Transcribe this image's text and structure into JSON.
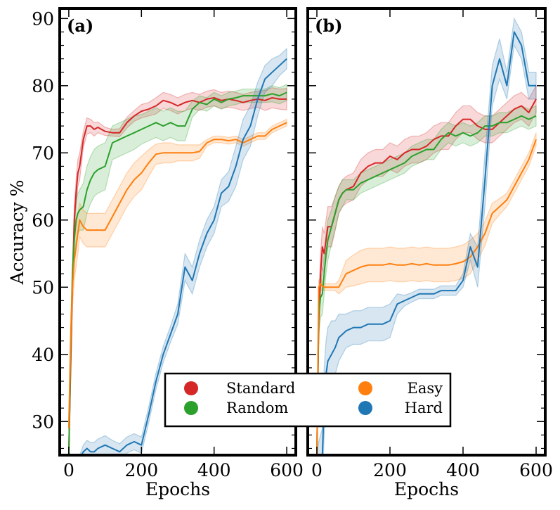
{
  "chart_data": [
    {
      "type": "line",
      "panel_label": "(a)",
      "xlabel": "Epochs",
      "ylabel": "Accuracy %",
      "xlim": [
        -25,
        625
      ],
      "ylim": [
        25,
        91.5
      ],
      "xticks": [
        0,
        200,
        400,
        600
      ],
      "yticks": [
        30,
        40,
        50,
        60,
        70,
        80,
        90
      ],
      "grid": false,
      "x": [
        0,
        5,
        10,
        15,
        20,
        25,
        30,
        40,
        50,
        60,
        70,
        80,
        100,
        120,
        140,
        160,
        180,
        200,
        220,
        240,
        260,
        280,
        300,
        320,
        340,
        360,
        380,
        400,
        420,
        440,
        460,
        480,
        500,
        520,
        540,
        560,
        580,
        600
      ],
      "series": [
        {
          "name": "Standard",
          "color": "#d62728",
          "values": [
            25,
            38,
            50,
            60,
            64,
            67,
            68,
            72,
            74,
            74,
            73.5,
            73.8,
            73.2,
            73.0,
            73.0,
            74.5,
            75.5,
            76.2,
            76.5,
            77.0,
            77.8,
            77.5,
            77.0,
            77.5,
            77.8,
            77.5,
            78.0,
            78.2,
            77.8,
            78.0,
            77.8,
            77.5,
            77.8,
            78.0,
            77.8,
            78.2,
            78.0,
            78.0
          ],
          "spread": [
            0.5,
            2,
            2,
            2,
            2,
            2,
            2,
            1.2,
            1.2,
            1,
            1,
            0.8,
            0.6,
            0.5,
            0.6,
            0.8,
            0.8,
            1,
            1,
            1.2,
            1.2,
            1.2,
            1.2,
            1.2,
            1.2,
            1.2,
            1.2,
            1.2,
            1.2,
            1.2,
            1.2,
            1.2,
            1.2,
            1.2,
            1.5,
            1.5,
            1.5,
            1.6
          ]
        },
        {
          "name": "Random",
          "color": "#2ca02c",
          "values": [
            25,
            40,
            52,
            57,
            60,
            61,
            61.5,
            62,
            64.5,
            66,
            67,
            67.5,
            68,
            71.5,
            72,
            72.5,
            73,
            73.5,
            74,
            74.5,
            74,
            74.5,
            74,
            74,
            76.5,
            77.5,
            77.2,
            78.0,
            77.5,
            78.0,
            78.2,
            78.5,
            78.5,
            78.5,
            78.5,
            78.8,
            78.5,
            79.0
          ],
          "spread": [
            0.5,
            2,
            2,
            2.5,
            3,
            3,
            3,
            3.5,
            3.5,
            3.5,
            3.5,
            3.5,
            3.5,
            2.5,
            2.5,
            2.5,
            2.5,
            2.2,
            2.2,
            2.2,
            2.2,
            2.2,
            2.2,
            2.2,
            1.2,
            1.0,
            1.0,
            1.0,
            1.0,
            1.0,
            1.0,
            1.0,
            1.0,
            1.0,
            1.0,
            1.2,
            1.2,
            1.2
          ]
        },
        {
          "name": "Easy",
          "color": "#ff7f0e",
          "values": [
            29,
            42,
            50,
            54,
            56,
            58,
            60,
            59,
            58.5,
            58.5,
            58.5,
            58.5,
            58.5,
            60.5,
            62.5,
            64.5,
            66,
            67,
            68.5,
            69.8,
            70,
            70,
            70,
            70,
            70,
            70.2,
            71.5,
            72,
            72,
            71.8,
            72.0,
            71.5,
            72,
            72.5,
            72.5,
            73.5,
            74,
            74.5
          ],
          "spread": [
            0.5,
            3,
            3,
            3,
            3,
            3,
            2.5,
            2.5,
            2.5,
            2.5,
            2.5,
            2.5,
            2.5,
            2.5,
            2.5,
            2.5,
            2.5,
            2.5,
            2,
            1.5,
            1.5,
            1.5,
            1.2,
            1.2,
            1.2,
            1.0,
            0.5,
            0.5,
            0.5,
            0.5,
            0.5,
            0.5,
            0.5,
            0.5,
            0.5,
            0.5,
            0.5,
            0.5
          ]
        },
        {
          "name": "Hard",
          "color": "#1f77b4",
          "values": [
            25,
            24.5,
            24.5,
            24.5,
            24.5,
            24.5,
            24.5,
            25.5,
            26,
            25.5,
            25.5,
            26,
            26.5,
            26,
            25.5,
            26.5,
            27,
            26.5,
            31,
            36,
            40,
            43,
            46,
            53,
            51,
            55,
            58,
            60,
            64,
            65,
            68,
            72,
            74,
            78,
            81,
            82,
            83,
            84
          ],
          "spread": [
            0.5,
            0.5,
            0.5,
            0.5,
            0.5,
            0.5,
            0.5,
            1,
            1.2,
            1.4,
            1.4,
            1.4,
            1.4,
            1.2,
            1.2,
            1.2,
            1.2,
            1.2,
            1.2,
            1.2,
            1.2,
            1.2,
            1.5,
            2,
            2,
            2,
            2,
            2,
            2,
            2.2,
            3,
            3,
            3,
            2.5,
            2,
            2,
            1.5,
            1.5
          ]
        }
      ]
    },
    {
      "type": "line",
      "panel_label": "(b)",
      "xlabel": "Epochs",
      "ylabel": "",
      "xlim": [
        -25,
        625
      ],
      "ylim": [
        25,
        91.5
      ],
      "xticks": [
        0,
        200,
        400,
        600
      ],
      "yticks": [
        30,
        40,
        50,
        60,
        70,
        80,
        90
      ],
      "grid": false,
      "x": [
        0,
        5,
        10,
        15,
        20,
        25,
        30,
        40,
        50,
        60,
        70,
        80,
        100,
        120,
        140,
        160,
        180,
        200,
        220,
        240,
        260,
        280,
        300,
        320,
        340,
        360,
        380,
        400,
        420,
        440,
        460,
        480,
        500,
        520,
        540,
        560,
        580,
        600
      ],
      "series": [
        {
          "name": "Standard",
          "color": "#d62728",
          "values": [
            25,
            45,
            52,
            56,
            55,
            57,
            59,
            59,
            61,
            63,
            64,
            64.5,
            65,
            67,
            68,
            68.5,
            68.5,
            69.5,
            69,
            70,
            70.5,
            70.5,
            71,
            72,
            72.5,
            72.5,
            74,
            75,
            75,
            74,
            73.5,
            73.5,
            74.5,
            75.5,
            76.5,
            77,
            76,
            78
          ],
          "spread": [
            0.5,
            3,
            3,
            3,
            3,
            3,
            3,
            3,
            2.5,
            2,
            2,
            2,
            2,
            2,
            2,
            2,
            2,
            2,
            2,
            2,
            2,
            2,
            2,
            2,
            2,
            2,
            2,
            2,
            2,
            2,
            2,
            2,
            2,
            2,
            2,
            2,
            2,
            2
          ]
        },
        {
          "name": "Random",
          "color": "#2ca02c",
          "values": [
            25,
            46,
            48.5,
            49,
            52,
            55,
            57,
            59,
            61,
            63,
            64,
            64.5,
            64.5,
            65.5,
            66,
            66.5,
            67,
            67.5,
            68,
            68.5,
            69.5,
            70,
            70.5,
            70.5,
            72,
            73,
            72.5,
            73,
            72.5,
            73,
            74,
            74,
            74.5,
            74.5,
            75,
            75.5,
            75,
            75.5
          ],
          "spread": [
            0.5,
            3,
            3,
            3,
            3,
            3,
            3,
            2.5,
            2.5,
            2,
            2,
            1.5,
            1.5,
            1.5,
            1.5,
            1.5,
            1.5,
            1.5,
            1.5,
            1.5,
            1.5,
            1.5,
            1.5,
            1.5,
            1.5,
            1.5,
            1.5,
            1.5,
            1.5,
            1.5,
            1.5,
            1.5,
            1.5,
            1.5,
            1.5,
            1.5,
            1.5,
            1.5
          ]
        },
        {
          "name": "Easy",
          "color": "#ff7f0e",
          "values": [
            25,
            50,
            50.5,
            50.2,
            50,
            50,
            50,
            50,
            50,
            50,
            51,
            52,
            52.5,
            53,
            53.3,
            53.3,
            53.3,
            53.5,
            53.3,
            53.3,
            53.5,
            53.3,
            53.5,
            53.3,
            53.3,
            53.3,
            53.5,
            53.8,
            54.5,
            56,
            58,
            61,
            62,
            63,
            65,
            67,
            69,
            72
          ],
          "spread": [
            0.5,
            1,
            1,
            0.5,
            0.5,
            0.5,
            0.5,
            0.5,
            0.5,
            1,
            1.5,
            2,
            2.3,
            2.5,
            2.5,
            2.5,
            2.5,
            2.5,
            2.5,
            2.5,
            2.5,
            2.5,
            2.5,
            2.5,
            2.5,
            2.5,
            2.5,
            2.5,
            2.5,
            2,
            1.8,
            1.5,
            1.2,
            1.0,
            1.0,
            1.0,
            1.0,
            1.0
          ]
        },
        {
          "name": "Hard",
          "color": "#1f77b4",
          "values": [
            25,
            25,
            25,
            25,
            33,
            37,
            39,
            40,
            41,
            42.5,
            43,
            43.5,
            44,
            44,
            44.5,
            44.5,
            44.5,
            45,
            47.5,
            48,
            48.5,
            49,
            49,
            49,
            49.5,
            49.5,
            49.5,
            51,
            56,
            53,
            66,
            80,
            84,
            80,
            88,
            86,
            80,
            80
          ],
          "spread": [
            0.5,
            2,
            3,
            4,
            5,
            5,
            5,
            5,
            4,
            3.5,
            3,
            2.5,
            2.5,
            2.5,
            2.5,
            2.5,
            2.5,
            2.5,
            1.5,
            0.8,
            0.7,
            0.7,
            0.7,
            0.7,
            0.7,
            0.7,
            0.7,
            1,
            2,
            3,
            4,
            3,
            3,
            2,
            2,
            2,
            2,
            2
          ]
        }
      ]
    }
  ],
  "legend": {
    "placement": "lower-center",
    "entries": [
      {
        "label": "Standard",
        "color": "#d62728"
      },
      {
        "label": "Random",
        "color": "#2ca02c"
      },
      {
        "label": "Easy",
        "color": "#ff7f0e"
      },
      {
        "label": "Hard",
        "color": "#1f77b4"
      }
    ]
  }
}
